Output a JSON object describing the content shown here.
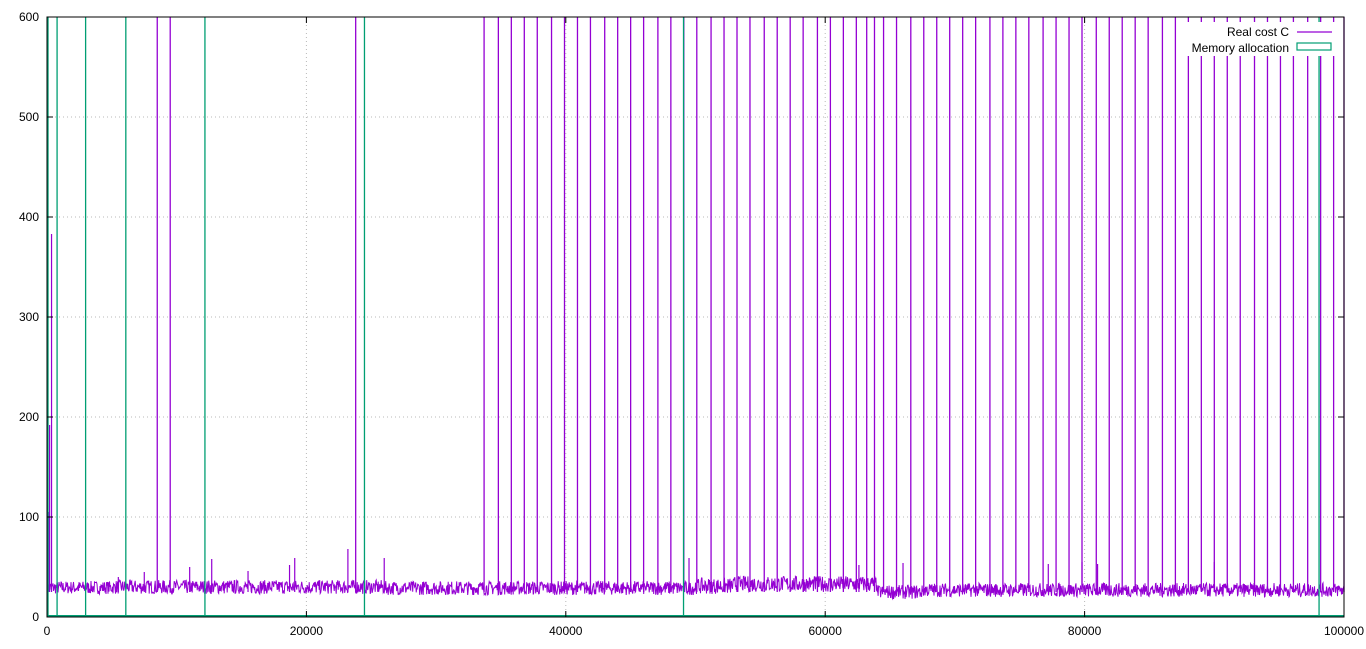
{
  "chart_data": {
    "type": "line",
    "title": "",
    "xlabel": "",
    "ylabel": "",
    "xlim": [
      0,
      100000
    ],
    "ylim": [
      0,
      600
    ],
    "x_ticks": [
      {
        "value": 0,
        "label": "0"
      },
      {
        "value": 20000,
        "label": "20000"
      },
      {
        "value": 40000,
        "label": "40000"
      },
      {
        "value": 60000,
        "label": "60000"
      },
      {
        "value": 80000,
        "label": "80000"
      },
      {
        "value": 100000,
        "label": "100000"
      }
    ],
    "y_ticks": [
      {
        "value": 0,
        "label": "0"
      },
      {
        "value": 100,
        "label": "100"
      },
      {
        "value": 200,
        "label": "200"
      },
      {
        "value": 300,
        "label": "300"
      },
      {
        "value": 400,
        "label": "400"
      },
      {
        "value": 500,
        "label": "500"
      },
      {
        "value": 600,
        "label": "600"
      }
    ],
    "grid": true,
    "legend_position": "top-right",
    "series": [
      {
        "name": "Real cost C",
        "style": "line",
        "color": "#9400d3",
        "baseline_segments": [
          {
            "x_start": 0,
            "x_end": 5300,
            "low": 23,
            "high": 36
          },
          {
            "x_start": 5300,
            "x_end": 26000,
            "low": 23,
            "high": 37
          },
          {
            "x_start": 26000,
            "x_end": 50000,
            "low": 22,
            "high": 36
          },
          {
            "x_start": 50000,
            "x_end": 53000,
            "low": 23,
            "high": 39
          },
          {
            "x_start": 53000,
            "x_end": 64000,
            "low": 25,
            "high": 41
          },
          {
            "x_start": 64000,
            "x_end": 67500,
            "low": 18,
            "high": 32
          },
          {
            "x_start": 67500,
            "x_end": 100000,
            "low": 20,
            "high": 34
          }
        ],
        "peaks": [
          {
            "x": 100,
            "y": 105
          },
          {
            "x": 200,
            "y": 192
          },
          {
            "x": 350,
            "y": 383
          },
          {
            "x": 5500,
            "y": 40
          },
          {
            "x": 7500,
            "y": 45
          },
          {
            "x": 11000,
            "y": 50
          },
          {
            "x": 12700,
            "y": 58
          },
          {
            "x": 15500,
            "y": 46
          },
          {
            "x": 18700,
            "y": 52
          },
          {
            "x": 19100,
            "y": 59
          },
          {
            "x": 23200,
            "y": 68
          },
          {
            "x": 26000,
            "y": 59
          },
          {
            "x": 49500,
            "y": 59
          },
          {
            "x": 62600,
            "y": 52
          },
          {
            "x": 66000,
            "y": 54
          },
          {
            "x": 77200,
            "y": 53
          },
          {
            "x": 79800,
            "y": 55
          },
          {
            "x": 81000,
            "y": 53
          },
          {
            "x": 90000,
            "y": 55
          }
        ],
        "spikes_x": [
          8500,
          9500,
          23800,
          33700,
          34800,
          35800,
          36800,
          37800,
          38900,
          39900,
          40900,
          41900,
          43000,
          44000,
          45000,
          46000,
          47100,
          48100,
          49100,
          50100,
          51200,
          52200,
          53200,
          54200,
          55300,
          56300,
          57300,
          58300,
          59400,
          60400,
          61400,
          62400,
          63200,
          63800,
          64500,
          65500,
          66600,
          67600,
          68600,
          69600,
          70600,
          71600,
          72700,
          73700,
          74700,
          75700,
          76800,
          77800,
          78800,
          79800,
          80900,
          81900,
          82900,
          83900,
          84900,
          86000,
          87000,
          88000,
          89000,
          90000,
          91000,
          92000,
          93100,
          94100,
          95100,
          96100,
          97200,
          98200,
          99200,
          100000
        ],
        "spike_y": 600
      },
      {
        "name": "Memory allocation",
        "style": "impulses",
        "color": "#009e73",
        "baseline_y": 0,
        "spikes_x": [
          0,
          700,
          2900,
          6000,
          12100,
          24400,
          49000,
          98000
        ],
        "spike_y": 600
      }
    ]
  }
}
